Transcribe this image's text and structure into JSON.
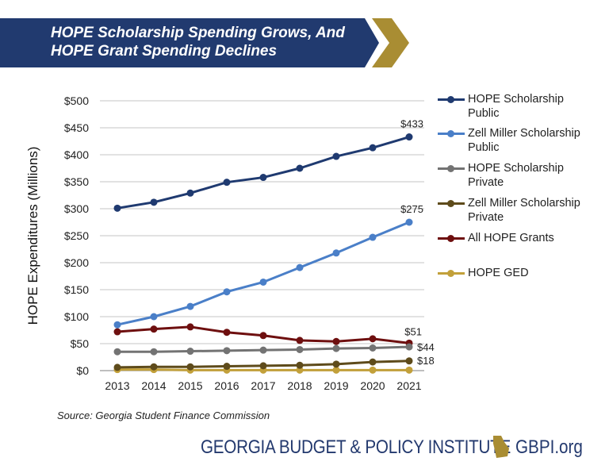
{
  "title": "HOPE Scholarship Spending Grows, And HOPE Grant Spending Declines",
  "colors": {
    "banner": "#213a6f",
    "chevron": "#a98d33"
  },
  "chart_data": {
    "type": "line",
    "title": "HOPE Scholarship Spending Grows, And HOPE Grant Spending Declines",
    "xlabel": "",
    "ylabel": "HOPE Expenditures (Millions)",
    "x": [
      "2013",
      "2014",
      "2015",
      "2016",
      "2017",
      "2018",
      "2019",
      "2020",
      "2021"
    ],
    "ylim": [
      0,
      500
    ],
    "yticks": [
      "$0",
      "$50",
      "$100",
      "$150",
      "$200",
      "$250",
      "$300",
      "$350",
      "$400",
      "$450",
      "$500"
    ],
    "grid": true,
    "legend": "right",
    "series": [
      {
        "name": "HOPE Scholarship Public",
        "color": "#1f3a70",
        "values": [
          301,
          312,
          329,
          349,
          358,
          375,
          397,
          413,
          433
        ],
        "end_label": "$433"
      },
      {
        "name": "Zell Miller Scholarship Public",
        "color": "#4a7fc8",
        "values": [
          85,
          100,
          119,
          146,
          164,
          191,
          218,
          247,
          275
        ],
        "end_label": "$275"
      },
      {
        "name": "HOPE Scholarship Private",
        "color": "#737373",
        "values": [
          35,
          35,
          36,
          37,
          38,
          39,
          41,
          42,
          44
        ],
        "end_label": "$44"
      },
      {
        "name": "Zell Miller Scholarship Private",
        "color": "#5e4b1b",
        "values": [
          6,
          7,
          7,
          8,
          9,
          10,
          12,
          16,
          18
        ],
        "end_label": "$18"
      },
      {
        "name": "All HOPE Grants",
        "color": "#6e0f0f",
        "values": [
          72,
          77,
          81,
          71,
          65,
          56,
          54,
          59,
          51
        ],
        "end_label": "$51"
      },
      {
        "name": "HOPE GED",
        "color": "#c2a03a",
        "values": [
          2,
          2,
          1,
          1,
          1,
          1,
          1,
          1,
          1
        ],
        "end_label": ""
      }
    ]
  },
  "legend_lines": [
    [
      "HOPE Scholarship",
      "Public"
    ],
    [
      "Zell Miller Scholarship",
      "Public"
    ],
    [
      "HOPE Scholarship",
      "Private"
    ],
    [
      "Zell Miller Scholarship",
      "Private"
    ],
    [
      "All HOPE Grants",
      ""
    ],
    [
      "HOPE GED",
      ""
    ]
  ],
  "source": "Source: Georgia Student Finance Commission",
  "footer": {
    "org": "GEORGIA BUDGET & POLICY INSTITUTE",
    "site": "GBPI.org"
  }
}
